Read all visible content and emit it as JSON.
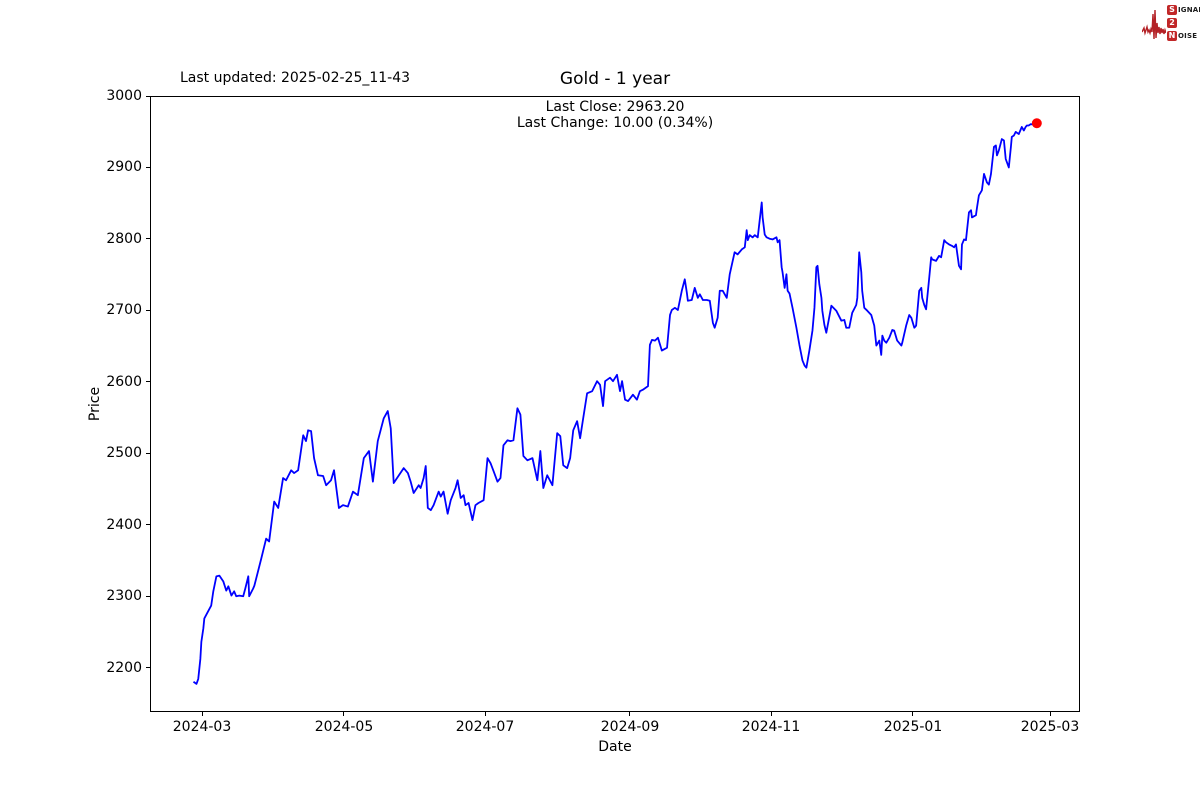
{
  "header": {
    "last_updated": "Last updated: 2025-02-25_11-43"
  },
  "logo": {
    "rows": [
      {
        "badge": "S",
        "rest": "IGNAL"
      },
      {
        "badge": "2",
        "rest": ""
      },
      {
        "badge": "N",
        "rest": "OISE"
      }
    ],
    "accent_color": "#c12728"
  },
  "chart_data": {
    "type": "line",
    "title": "Gold - 1 year",
    "xlabel": "Date",
    "ylabel": "Price",
    "annotations": {
      "last_close": "Last Close: 2963.20",
      "last_change": "Last Change: 10.00 (0.34%)",
      "last_close_value": 2963.2,
      "last_change_value": 10.0,
      "last_change_pct": 0.34
    },
    "grid": false,
    "legend": "none",
    "line_color": "#0000ff",
    "x_unit": "days since 2024-03-01",
    "x_range": [
      -22.4,
      377.9
    ],
    "y_range": [
      2138,
      3000
    ],
    "x_ticks": [
      {
        "day": 0,
        "label": "2024-03"
      },
      {
        "day": 61,
        "label": "2024-05"
      },
      {
        "day": 122,
        "label": "2024-07"
      },
      {
        "day": 184,
        "label": "2024-09"
      },
      {
        "day": 245,
        "label": "2024-11"
      },
      {
        "day": 306,
        "label": "2025-01"
      },
      {
        "day": 365,
        "label": "2025-03"
      }
    ],
    "y_ticks": [
      2200,
      2300,
      2400,
      2500,
      2600,
      2700,
      2800,
      2900,
      3000
    ],
    "marker": {
      "day": 359.9,
      "price": 2963.2,
      "color": "#ff0000"
    },
    "series": [
      {
        "name": "Gold",
        "points": [
          [
            -4.3,
            2179
          ],
          [
            -3,
            2176
          ],
          [
            -2.2,
            2183
          ],
          [
            -1.3,
            2211
          ],
          [
            -0.9,
            2235
          ],
          [
            0,
            2254
          ],
          [
            0.4,
            2268
          ],
          [
            2.2,
            2279
          ],
          [
            3.4,
            2286
          ],
          [
            4.3,
            2306
          ],
          [
            5.6,
            2327
          ],
          [
            6.9,
            2328
          ],
          [
            8.6,
            2320
          ],
          [
            9.9,
            2307
          ],
          [
            10.8,
            2313
          ],
          [
            12.1,
            2300
          ],
          [
            13.3,
            2306
          ],
          [
            14.2,
            2299
          ],
          [
            15.5,
            2300
          ],
          [
            17.2,
            2299
          ],
          [
            18.1,
            2310
          ],
          [
            19.4,
            2327
          ],
          [
            19.8,
            2299
          ],
          [
            21.5,
            2310
          ],
          [
            22,
            2314
          ],
          [
            25,
            2352
          ],
          [
            27.1,
            2380
          ],
          [
            28.4,
            2376
          ],
          [
            30.6,
            2432
          ],
          [
            32.3,
            2423
          ],
          [
            34.4,
            2465
          ],
          [
            35.7,
            2462
          ],
          [
            37.9,
            2476
          ],
          [
            39.2,
            2472
          ],
          [
            40.9,
            2476
          ],
          [
            43.1,
            2525
          ],
          [
            44.3,
            2517
          ],
          [
            45.2,
            2532
          ],
          [
            46.5,
            2531
          ],
          [
            47.8,
            2493
          ],
          [
            49.5,
            2469
          ],
          [
            51.7,
            2468
          ],
          [
            53,
            2455
          ],
          [
            55.1,
            2462
          ],
          [
            56.4,
            2476
          ],
          [
            58.5,
            2423
          ],
          [
            60.3,
            2427
          ],
          [
            62.4,
            2425
          ],
          [
            64.6,
            2446
          ],
          [
            66.7,
            2441
          ],
          [
            69.3,
            2493
          ],
          [
            71.5,
            2503
          ],
          [
            73.2,
            2460
          ],
          [
            75.3,
            2517
          ],
          [
            77.9,
            2549
          ],
          [
            79.6,
            2559
          ],
          [
            80.9,
            2535
          ],
          [
            82.2,
            2458
          ],
          [
            86.5,
            2479
          ],
          [
            88.3,
            2472
          ],
          [
            89.5,
            2460
          ],
          [
            90.8,
            2444
          ],
          [
            93,
            2455
          ],
          [
            93.8,
            2451
          ],
          [
            95.1,
            2465
          ],
          [
            96,
            2482
          ],
          [
            96.9,
            2423
          ],
          [
            98.2,
            2420
          ],
          [
            99.4,
            2427
          ],
          [
            101.6,
            2446
          ],
          [
            102.5,
            2439
          ],
          [
            103.7,
            2446
          ],
          [
            105.5,
            2415
          ],
          [
            106.8,
            2434
          ],
          [
            108.9,
            2451
          ],
          [
            109.8,
            2462
          ],
          [
            111.1,
            2437
          ],
          [
            112.4,
            2441
          ],
          [
            113.2,
            2427
          ],
          [
            114.5,
            2430
          ],
          [
            116.2,
            2406
          ],
          [
            117.5,
            2427
          ],
          [
            118.8,
            2430
          ],
          [
            121,
            2434
          ],
          [
            122.7,
            2493
          ],
          [
            124,
            2486
          ],
          [
            125.3,
            2475
          ],
          [
            127,
            2460
          ],
          [
            128.3,
            2465
          ],
          [
            129.6,
            2511
          ],
          [
            131.3,
            2518
          ],
          [
            132.6,
            2517
          ],
          [
            133.9,
            2518
          ],
          [
            135.6,
            2563
          ],
          [
            136.9,
            2554
          ],
          [
            138.2,
            2496
          ],
          [
            139.9,
            2490
          ],
          [
            142.1,
            2493
          ],
          [
            144.2,
            2462
          ],
          [
            145.5,
            2503
          ],
          [
            146.8,
            2451
          ],
          [
            148.5,
            2469
          ],
          [
            150.7,
            2455
          ],
          [
            152.8,
            2528
          ],
          [
            154.1,
            2524
          ],
          [
            155.4,
            2483
          ],
          [
            157.1,
            2479
          ],
          [
            158.4,
            2493
          ],
          [
            159.7,
            2532
          ],
          [
            161.4,
            2545
          ],
          [
            162.7,
            2521
          ],
          [
            164,
            2549
          ],
          [
            165.7,
            2584
          ],
          [
            167.9,
            2587
          ],
          [
            170,
            2601
          ],
          [
            171.3,
            2596
          ],
          [
            172.6,
            2566
          ],
          [
            173.5,
            2601
          ],
          [
            175.6,
            2606
          ],
          [
            176.9,
            2601
          ],
          [
            178.6,
            2610
          ],
          [
            179.9,
            2587
          ],
          [
            180.8,
            2601
          ],
          [
            182.1,
            2575
          ],
          [
            183.4,
            2573
          ],
          [
            185.5,
            2582
          ],
          [
            187.2,
            2575
          ],
          [
            188.5,
            2587
          ],
          [
            189.8,
            2589
          ],
          [
            192,
            2594
          ],
          [
            192.8,
            2652
          ],
          [
            193.7,
            2659
          ],
          [
            195,
            2658
          ],
          [
            196.3,
            2662
          ],
          [
            198,
            2644
          ],
          [
            200.2,
            2648
          ],
          [
            201.5,
            2694
          ],
          [
            202.3,
            2701
          ],
          [
            203.6,
            2704
          ],
          [
            204.9,
            2701
          ],
          [
            206.6,
            2728
          ],
          [
            207.9,
            2744
          ],
          [
            208.8,
            2725
          ],
          [
            209.2,
            2714
          ],
          [
            210.9,
            2715
          ],
          [
            212.2,
            2732
          ],
          [
            213.5,
            2718
          ],
          [
            214.4,
            2723
          ],
          [
            215.7,
            2715
          ],
          [
            217.4,
            2715
          ],
          [
            218.7,
            2714
          ],
          [
            220,
            2683
          ],
          [
            220.8,
            2676
          ],
          [
            222.1,
            2690
          ],
          [
            223,
            2728
          ],
          [
            224.3,
            2728
          ],
          [
            226,
            2718
          ],
          [
            227.3,
            2751
          ],
          [
            229.4,
            2782
          ],
          [
            230.7,
            2779
          ],
          [
            232.5,
            2786
          ],
          [
            233.8,
            2789
          ],
          [
            234.6,
            2813
          ],
          [
            235.1,
            2799
          ],
          [
            235.9,
            2806
          ],
          [
            237.2,
            2803
          ],
          [
            238.1,
            2806
          ],
          [
            239.4,
            2803
          ],
          [
            241.1,
            2852
          ],
          [
            241.5,
            2831
          ],
          [
            242.4,
            2807
          ],
          [
            243.2,
            2803
          ],
          [
            244.5,
            2801
          ],
          [
            245.8,
            2800
          ],
          [
            247.5,
            2803
          ],
          [
            248,
            2796
          ],
          [
            248.8,
            2799
          ],
          [
            249.7,
            2761
          ],
          [
            250.1,
            2754
          ],
          [
            251,
            2732
          ],
          [
            251.8,
            2751
          ],
          [
            252.3,
            2728
          ],
          [
            253.1,
            2724
          ],
          [
            254.4,
            2704
          ],
          [
            256.1,
            2676
          ],
          [
            257.4,
            2652
          ],
          [
            258.7,
            2630
          ],
          [
            259.6,
            2623
          ],
          [
            260.4,
            2620
          ],
          [
            261.7,
            2644
          ],
          [
            263,
            2672
          ],
          [
            263.9,
            2704
          ],
          [
            264.7,
            2761
          ],
          [
            265.2,
            2763
          ],
          [
            266,
            2737
          ],
          [
            266.9,
            2718
          ],
          [
            267.3,
            2700
          ],
          [
            268.2,
            2680
          ],
          [
            269,
            2669
          ],
          [
            271.2,
            2707
          ],
          [
            273.3,
            2700
          ],
          [
            275.5,
            2686
          ],
          [
            276.8,
            2687
          ],
          [
            277.6,
            2676
          ],
          [
            278.9,
            2676
          ],
          [
            280.2,
            2697
          ],
          [
            281.9,
            2708
          ],
          [
            282.4,
            2718
          ],
          [
            283.2,
            2782
          ],
          [
            284.1,
            2754
          ],
          [
            284.5,
            2728
          ],
          [
            285.4,
            2704
          ],
          [
            286.7,
            2700
          ],
          [
            288.4,
            2694
          ],
          [
            289.7,
            2679
          ],
          [
            290.6,
            2651
          ],
          [
            291.9,
            2658
          ],
          [
            292.7,
            2638
          ],
          [
            293.2,
            2665
          ],
          [
            294,
            2658
          ],
          [
            294.9,
            2655
          ],
          [
            296.2,
            2662
          ],
          [
            297.5,
            2673
          ],
          [
            298.3,
            2672
          ],
          [
            299.6,
            2658
          ],
          [
            301.4,
            2651
          ],
          [
            301.8,
            2655
          ],
          [
            303.5,
            2679
          ],
          [
            304.8,
            2694
          ],
          [
            305.7,
            2690
          ],
          [
            307,
            2676
          ],
          [
            307.8,
            2679
          ],
          [
            309.1,
            2728
          ],
          [
            310,
            2732
          ],
          [
            310.4,
            2718
          ],
          [
            311.3,
            2708
          ],
          [
            312.1,
            2702
          ],
          [
            313.4,
            2744
          ],
          [
            314.3,
            2775
          ],
          [
            314.7,
            2772
          ],
          [
            316.4,
            2770
          ],
          [
            317.7,
            2777
          ],
          [
            318.6,
            2775
          ],
          [
            319.9,
            2799
          ],
          [
            320.7,
            2796
          ],
          [
            322,
            2793
          ],
          [
            323.3,
            2791
          ],
          [
            324.2,
            2789
          ],
          [
            325,
            2793
          ],
          [
            326.3,
            2763
          ],
          [
            327.2,
            2758
          ],
          [
            327.6,
            2793
          ],
          [
            328.5,
            2800
          ],
          [
            329.3,
            2799
          ],
          [
            330.6,
            2838
          ],
          [
            331.5,
            2841
          ],
          [
            331.9,
            2831
          ],
          [
            333.6,
            2834
          ],
          [
            334.1,
            2845
          ],
          [
            334.9,
            2862
          ],
          [
            336.2,
            2869
          ],
          [
            337.1,
            2892
          ],
          [
            338.4,
            2880
          ],
          [
            339.2,
            2877
          ],
          [
            340.1,
            2892
          ],
          [
            341.4,
            2930
          ],
          [
            342.2,
            2932
          ],
          [
            342.7,
            2918
          ],
          [
            343.5,
            2925
          ],
          [
            344.8,
            2941
          ],
          [
            345.7,
            2939
          ],
          [
            346.5,
            2913
          ],
          [
            347.8,
            2901
          ],
          [
            348.7,
            2930
          ],
          [
            349.1,
            2944
          ],
          [
            350,
            2946
          ],
          [
            350.8,
            2951
          ],
          [
            352.1,
            2948
          ],
          [
            353,
            2955
          ],
          [
            353.4,
            2958
          ],
          [
            354.3,
            2953
          ],
          [
            355.1,
            2958
          ],
          [
            355.6,
            2960
          ],
          [
            356.4,
            2960
          ],
          [
            357.3,
            2962
          ],
          [
            358.6,
            2961
          ],
          [
            359.9,
            2963.2
          ]
        ]
      }
    ]
  }
}
